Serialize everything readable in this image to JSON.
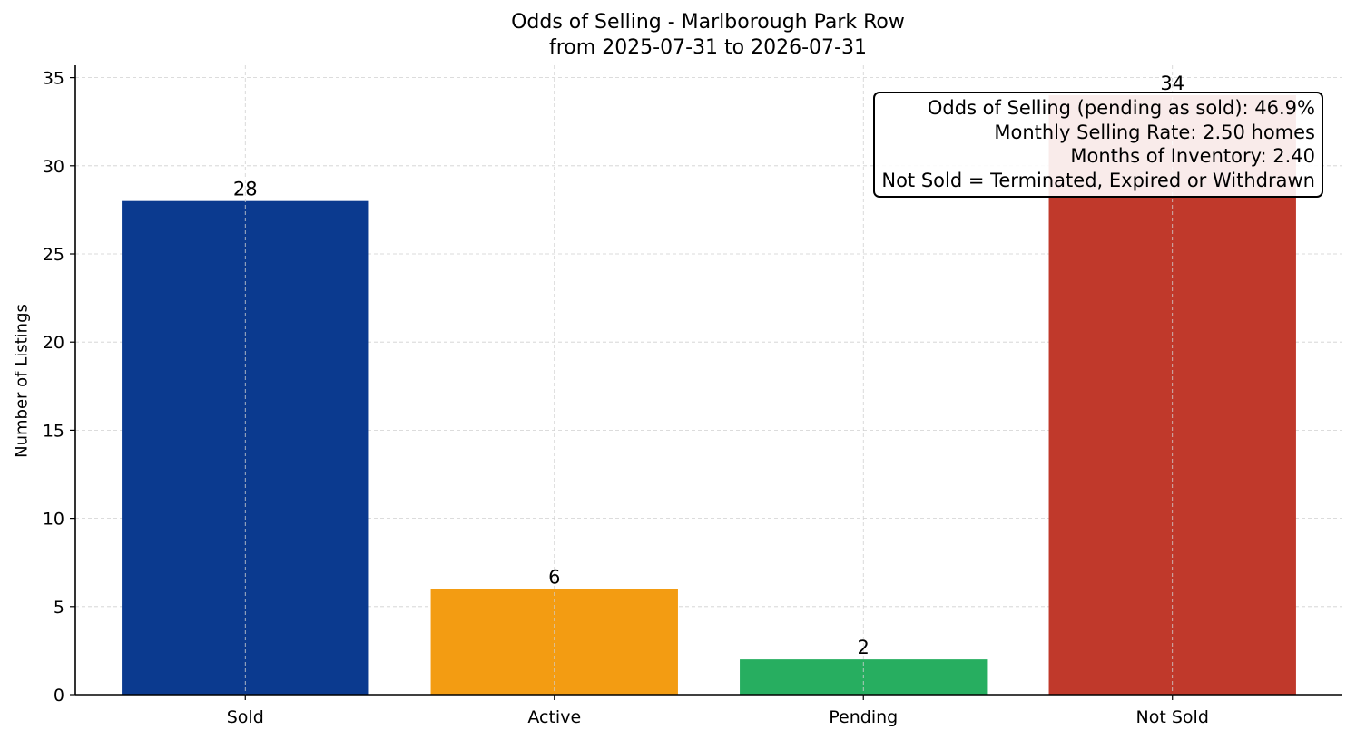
{
  "chart_data": {
    "type": "bar",
    "title": "Odds of Selling - Marlborough Park Row",
    "subtitle": "from 2025-07-31 to 2026-07-31",
    "xlabel": "",
    "ylabel": "Number of Listings",
    "categories": [
      "Sold",
      "Active",
      "Pending",
      "Not Sold"
    ],
    "values": [
      28,
      6,
      2,
      34
    ],
    "colors": [
      "#0b3a8f",
      "#f39c12",
      "#27ae60",
      "#c0392b"
    ],
    "data_labels": [
      "28",
      "6",
      "2",
      "34"
    ],
    "ylim": [
      0,
      35.7
    ],
    "yticks": [
      0,
      5,
      10,
      15,
      20,
      25,
      30,
      35
    ],
    "grid": true,
    "annotation": {
      "lines": [
        "Odds of Selling (pending as sold): 46.9%",
        "Monthly Selling Rate: 2.50 homes",
        "Months of Inventory: 2.40",
        "Not Sold = Terminated, Expired or Withdrawn"
      ],
      "placement": "top-right"
    }
  }
}
